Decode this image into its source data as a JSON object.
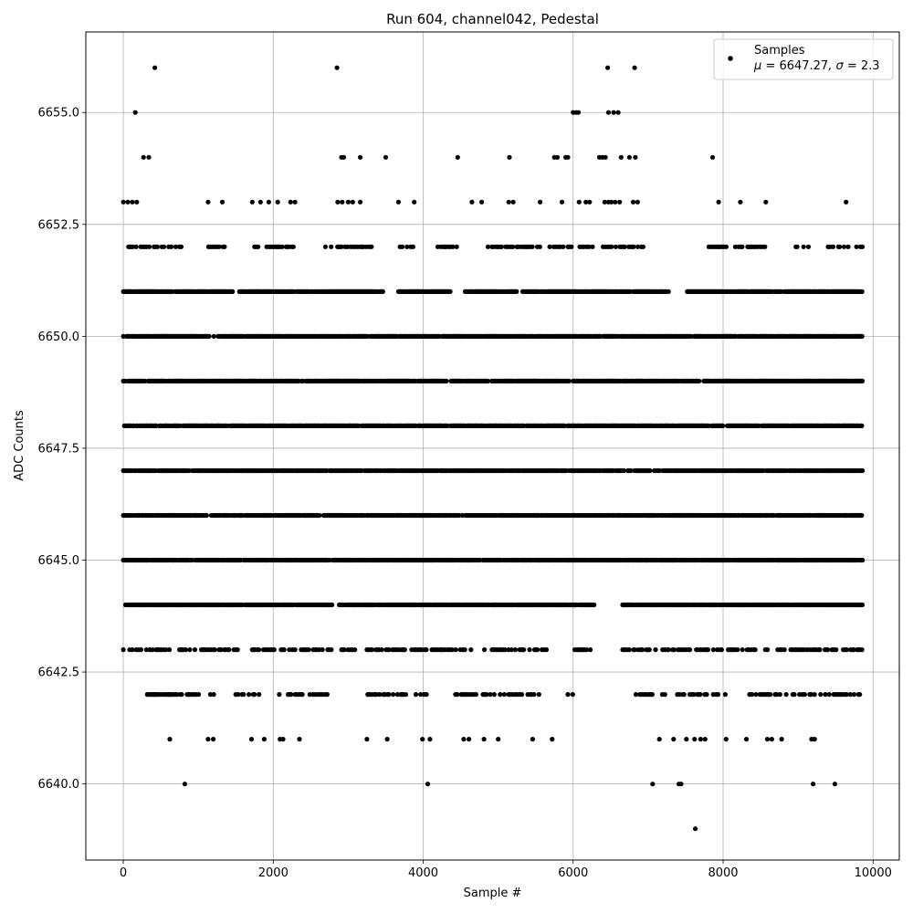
{
  "chart_data": {
    "type": "scatter",
    "title": "Run 604, channel042, Pedestal",
    "xlabel": "Sample #",
    "ylabel": "ADC Counts",
    "xlim": [
      -500,
      10350
    ],
    "ylim": [
      6638.3,
      6656.8
    ],
    "xticks": [
      0,
      2000,
      4000,
      6000,
      8000,
      10000
    ],
    "yticks": [
      6640.0,
      6642.5,
      6645.0,
      6647.5,
      6650.0,
      6652.5,
      6655.0
    ],
    "ytick_labels": [
      "6640.0",
      "6642.5",
      "6645.0",
      "6647.5",
      "6650.0",
      "6652.5",
      "6655.0"
    ],
    "grid": true,
    "legend": {
      "placement": "top-right",
      "label": "Samples",
      "stats_prefix": "μ = ",
      "stats_mu": "6647.27",
      "stats_sep": ", σ = ",
      "stats_sigma": "2.3"
    },
    "marker_color": "#000000",
    "sample_count": 9856,
    "outliers": [
      {
        "x": 420,
        "y": 6656
      },
      {
        "x": 2850,
        "y": 6656
      },
      {
        "x": 6460,
        "y": 6656
      },
      {
        "x": 6820,
        "y": 6656
      },
      {
        "x": 160,
        "y": 6655
      },
      {
        "x": 6000,
        "y": 6655
      },
      {
        "x": 6040,
        "y": 6655
      },
      {
        "x": 6070,
        "y": 6655
      },
      {
        "x": 6470,
        "y": 6655
      },
      {
        "x": 6540,
        "y": 6655
      },
      {
        "x": 6600,
        "y": 6655
      },
      {
        "x": 270,
        "y": 6654
      },
      {
        "x": 340,
        "y": 6654
      },
      {
        "x": 2910,
        "y": 6654
      },
      {
        "x": 2940,
        "y": 6654
      },
      {
        "x": 3160,
        "y": 6654
      },
      {
        "x": 3500,
        "y": 6654
      },
      {
        "x": 4460,
        "y": 6654
      },
      {
        "x": 5150,
        "y": 6654
      },
      {
        "x": 5750,
        "y": 6654
      },
      {
        "x": 5790,
        "y": 6654
      },
      {
        "x": 5900,
        "y": 6654
      },
      {
        "x": 5930,
        "y": 6654
      },
      {
        "x": 6350,
        "y": 6654
      },
      {
        "x": 6390,
        "y": 6654
      },
      {
        "x": 6430,
        "y": 6654
      },
      {
        "x": 6640,
        "y": 6654
      },
      {
        "x": 6750,
        "y": 6654
      },
      {
        "x": 6830,
        "y": 6654
      },
      {
        "x": 7860,
        "y": 6654
      },
      {
        "x": 820,
        "y": 6640
      },
      {
        "x": 4060,
        "y": 6640
      },
      {
        "x": 7060,
        "y": 6640
      },
      {
        "x": 7410,
        "y": 6640
      },
      {
        "x": 7440,
        "y": 6640
      },
      {
        "x": 9200,
        "y": 6640
      },
      {
        "x": 9490,
        "y": 6640
      },
      {
        "x": 7630,
        "y": 6639
      }
    ],
    "outer_levels": [
      {
        "y": 6653,
        "x": [
          0,
          60,
          120,
          180,
          1130,
          1320,
          1720,
          1830,
          1940,
          2060,
          2230,
          2290,
          2860,
          2920,
          3000,
          3060,
          3160,
          3670,
          3880,
          4650,
          4780,
          5140,
          5200,
          5560,
          5850,
          6080,
          6170,
          6220,
          6420,
          6470,
          6510,
          6560,
          6620,
          6800,
          6860,
          7940,
          8230,
          8570,
          9640
        ]
      },
      {
        "y": 6641,
        "x": [
          620,
          1130,
          1200,
          1710,
          1880,
          2090,
          2130,
          2350,
          3250,
          3520,
          3990,
          4090,
          4540,
          4610,
          4810,
          5000,
          5460,
          5720,
          7150,
          7340,
          7510,
          7620,
          7700,
          7760,
          8040,
          8310,
          8590,
          8650,
          8780,
          9180,
          9220
        ]
      }
    ],
    "mid_levels": [
      {
        "y": 6652,
        "x_ranges": [
          [
            70,
            780
          ],
          [
            1110,
            1370
          ],
          [
            1750,
            2310
          ],
          [
            2660,
            3320
          ],
          [
            3690,
            3870
          ],
          [
            4150,
            4660
          ],
          [
            4850,
            5890
          ],
          [
            5930,
            6950
          ],
          [
            7810,
            8620
          ],
          [
            8920,
            9220
          ],
          [
            9400,
            9860
          ]
        ]
      },
      {
        "y": 6643,
        "x_ranges": [
          [
            0,
            640
          ],
          [
            750,
            1560
          ],
          [
            1720,
            2020
          ],
          [
            2090,
            3090
          ],
          [
            3250,
            4680
          ],
          [
            4800,
            5660
          ],
          [
            5990,
            6250
          ],
          [
            6660,
            7370
          ],
          [
            7400,
            8290
          ],
          [
            8320,
            9860
          ]
        ]
      },
      {
        "y": 6642,
        "x_ranges": [
          [
            320,
            1240
          ],
          [
            1500,
            1810
          ],
          [
            2080,
            2720
          ],
          [
            3260,
            4060
          ],
          [
            4430,
            5600
          ],
          [
            5900,
            6000
          ],
          [
            6810,
            7320
          ],
          [
            7390,
            8040
          ],
          [
            8330,
            9860
          ]
        ]
      }
    ],
    "dense_levels": [
      {
        "y": 6651,
        "x_ranges": [
          [
            0,
            1470
          ],
          [
            1550,
            3470
          ],
          [
            3670,
            4370
          ],
          [
            4560,
            7290
          ],
          [
            7500,
            9860
          ]
        ]
      },
      {
        "y": 6644,
        "x_ranges": [
          [
            30,
            2790
          ],
          [
            2880,
            6280
          ],
          [
            6660,
            9860
          ]
        ]
      },
      {
        "y": 6650,
        "x_ranges": [
          [
            0,
            9860
          ]
        ]
      },
      {
        "y": 6649,
        "x_ranges": [
          [
            0,
            9860
          ]
        ]
      },
      {
        "y": 6648,
        "x_ranges": [
          [
            0,
            9860
          ]
        ]
      },
      {
        "y": 6647,
        "x_ranges": [
          [
            0,
            9860
          ]
        ]
      },
      {
        "y": 6646,
        "x_ranges": [
          [
            0,
            9860
          ]
        ]
      },
      {
        "y": 6645,
        "x_ranges": [
          [
            0,
            9860
          ]
        ]
      }
    ]
  }
}
